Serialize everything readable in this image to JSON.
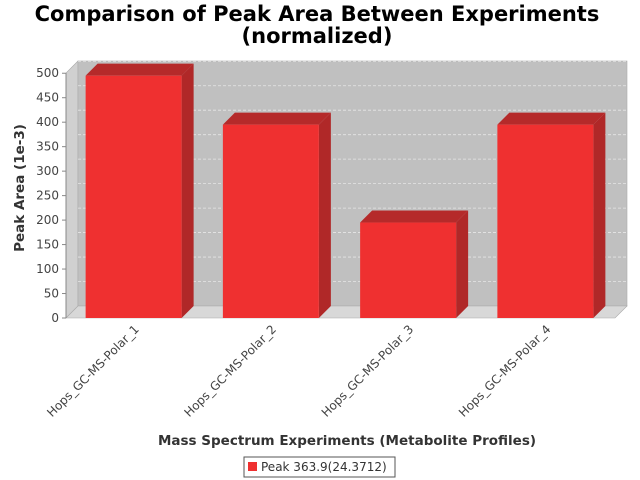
{
  "chart_data": {
    "type": "bar",
    "title_line1": "Comparison of Peak Area Between Experiments",
    "title_line2": "(normalized)",
    "xlabel": "Mass Spectrum Experiments (Metabolite Profiles)",
    "ylabel": "Peak Area (1e-3)",
    "categories": [
      "Hops_GC-MS-Polar_1",
      "Hops_GC-MS-Polar_2",
      "Hops_GC-MS-Polar_3",
      "Hops_GC-MS-Polar_4"
    ],
    "series": [
      {
        "name": "Peak 363.9(24.3712)",
        "values": [
          495,
          395,
          195,
          395
        ]
      }
    ],
    "ylim": [
      0,
      525
    ],
    "yticks": [
      "0",
      "50",
      "100",
      "150",
      "200",
      "250",
      "300",
      "350",
      "400",
      "450",
      "500"
    ],
    "grid": true,
    "legend_position": "bottom",
    "colors": {
      "bar_front": "#ef3030",
      "bar_top": "#b52a2a",
      "bar_side": "#b02828",
      "plot_back": "#c0c0c0",
      "plot_side": "#d0d0d0",
      "plot_floor": "#d8d8d8",
      "grid": "#e6e6e6"
    }
  }
}
